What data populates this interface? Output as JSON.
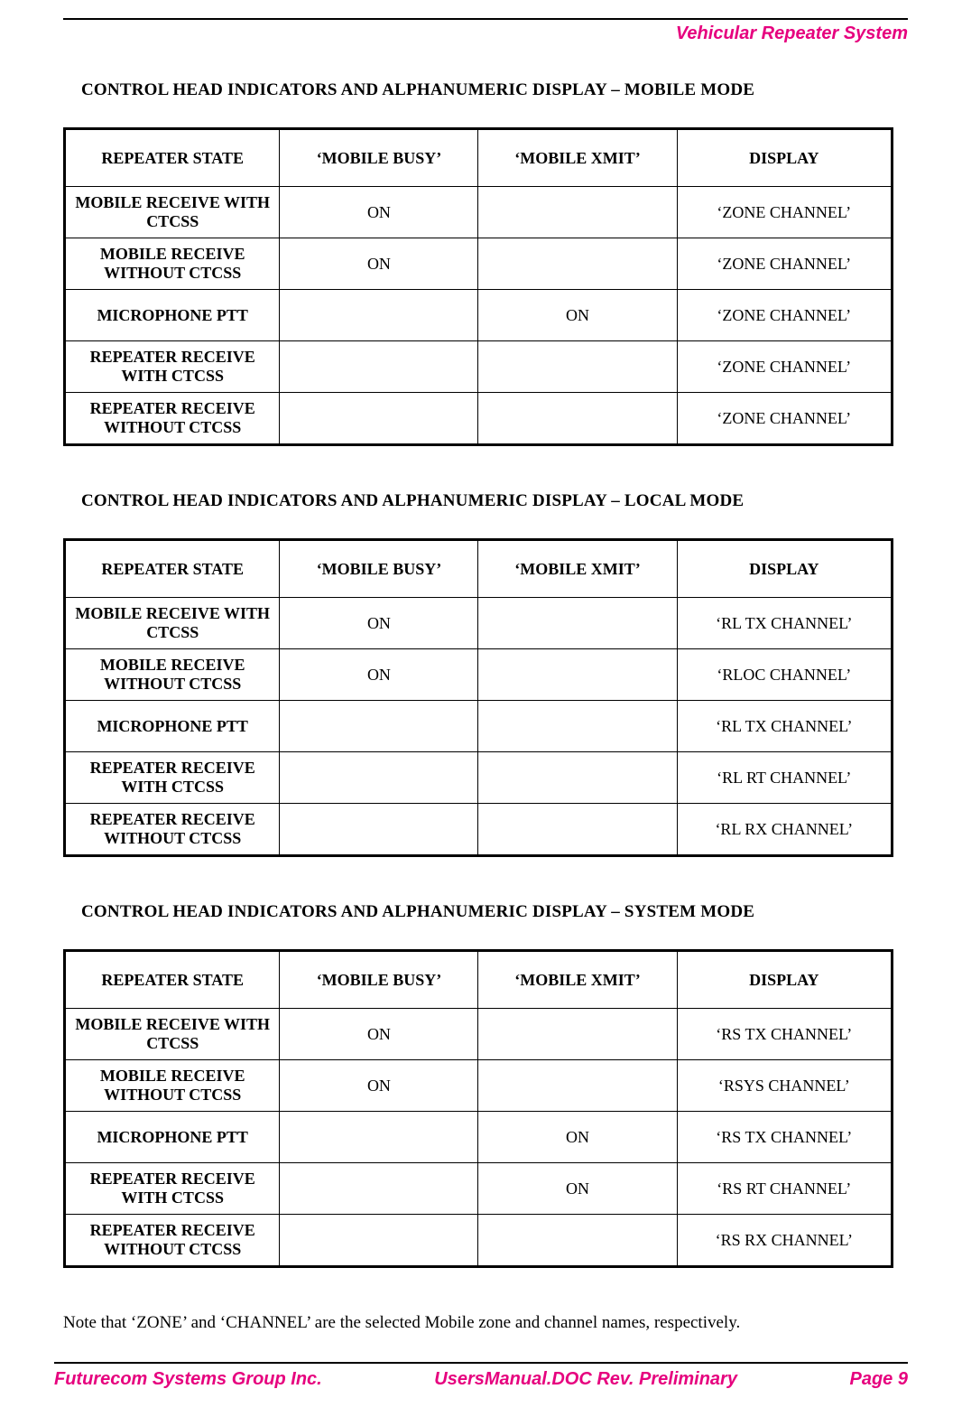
{
  "header": {
    "right": "Vehicular Repeater System"
  },
  "columns": {
    "state": "REPEATER STATE",
    "busy": "‘MOBILE BUSY’",
    "xmit": "‘MOBILE XMIT’",
    "display": "DISPLAY"
  },
  "row_states": [
    "MOBILE RECEIVE WITH CTCSS",
    "MOBILE RECEIVE WITHOUT CTCSS",
    "MICROPHONE PTT",
    "REPEATER RECEIVE WITH CTCSS",
    "REPEATER RECEIVE WITHOUT CTCSS"
  ],
  "sections": [
    {
      "title": "CONTROL HEAD INDICATORS AND ALPHANUMERIC DISPLAY – MOBILE MODE",
      "rows": [
        {
          "busy": "ON",
          "xmit": "",
          "display": "‘ZONE CHANNEL’"
        },
        {
          "busy": "ON",
          "xmit": "",
          "display": "‘ZONE CHANNEL’"
        },
        {
          "busy": "",
          "xmit": "ON",
          "display": "‘ZONE CHANNEL’"
        },
        {
          "busy": "",
          "xmit": "",
          "display": "‘ZONE CHANNEL’"
        },
        {
          "busy": "",
          "xmit": "",
          "display": "‘ZONE CHANNEL’"
        }
      ]
    },
    {
      "title": "CONTROL HEAD INDICATORS AND ALPHANUMERIC DISPLAY – LOCAL MODE",
      "rows": [
        {
          "busy": "ON",
          "xmit": "",
          "display": "‘RL TX CHANNEL’"
        },
        {
          "busy": "ON",
          "xmit": "",
          "display": "‘RLOC CHANNEL’"
        },
        {
          "busy": "",
          "xmit": "",
          "display": "‘RL TX CHANNEL’"
        },
        {
          "busy": "",
          "xmit": "",
          "display": "‘RL RT CHANNEL’"
        },
        {
          "busy": "",
          "xmit": "",
          "display": "‘RL RX CHANNEL’"
        }
      ]
    },
    {
      "title": "CONTROL HEAD INDICATORS AND ALPHANUMERIC DISPLAY – SYSTEM MODE",
      "rows": [
        {
          "busy": "ON",
          "xmit": "",
          "display": "‘RS TX CHANNEL’"
        },
        {
          "busy": "ON",
          "xmit": "",
          "display": "‘RSYS CHANNEL’"
        },
        {
          "busy": "",
          "xmit": "ON",
          "display": "‘RS TX CHANNEL’"
        },
        {
          "busy": "",
          "xmit": "ON",
          "display": "‘RS RT CHANNEL’"
        },
        {
          "busy": "",
          "xmit": "",
          "display": "‘RS RX CHANNEL’"
        }
      ]
    }
  ],
  "note": "Note that ‘ZONE’ and ‘CHANNEL’ are the selected Mobile zone and channel names, respectively.",
  "footer": {
    "left": "Futurecom Systems Group Inc.",
    "center": "UsersManual.DOC Rev. Preliminary",
    "right": "Page 9"
  }
}
